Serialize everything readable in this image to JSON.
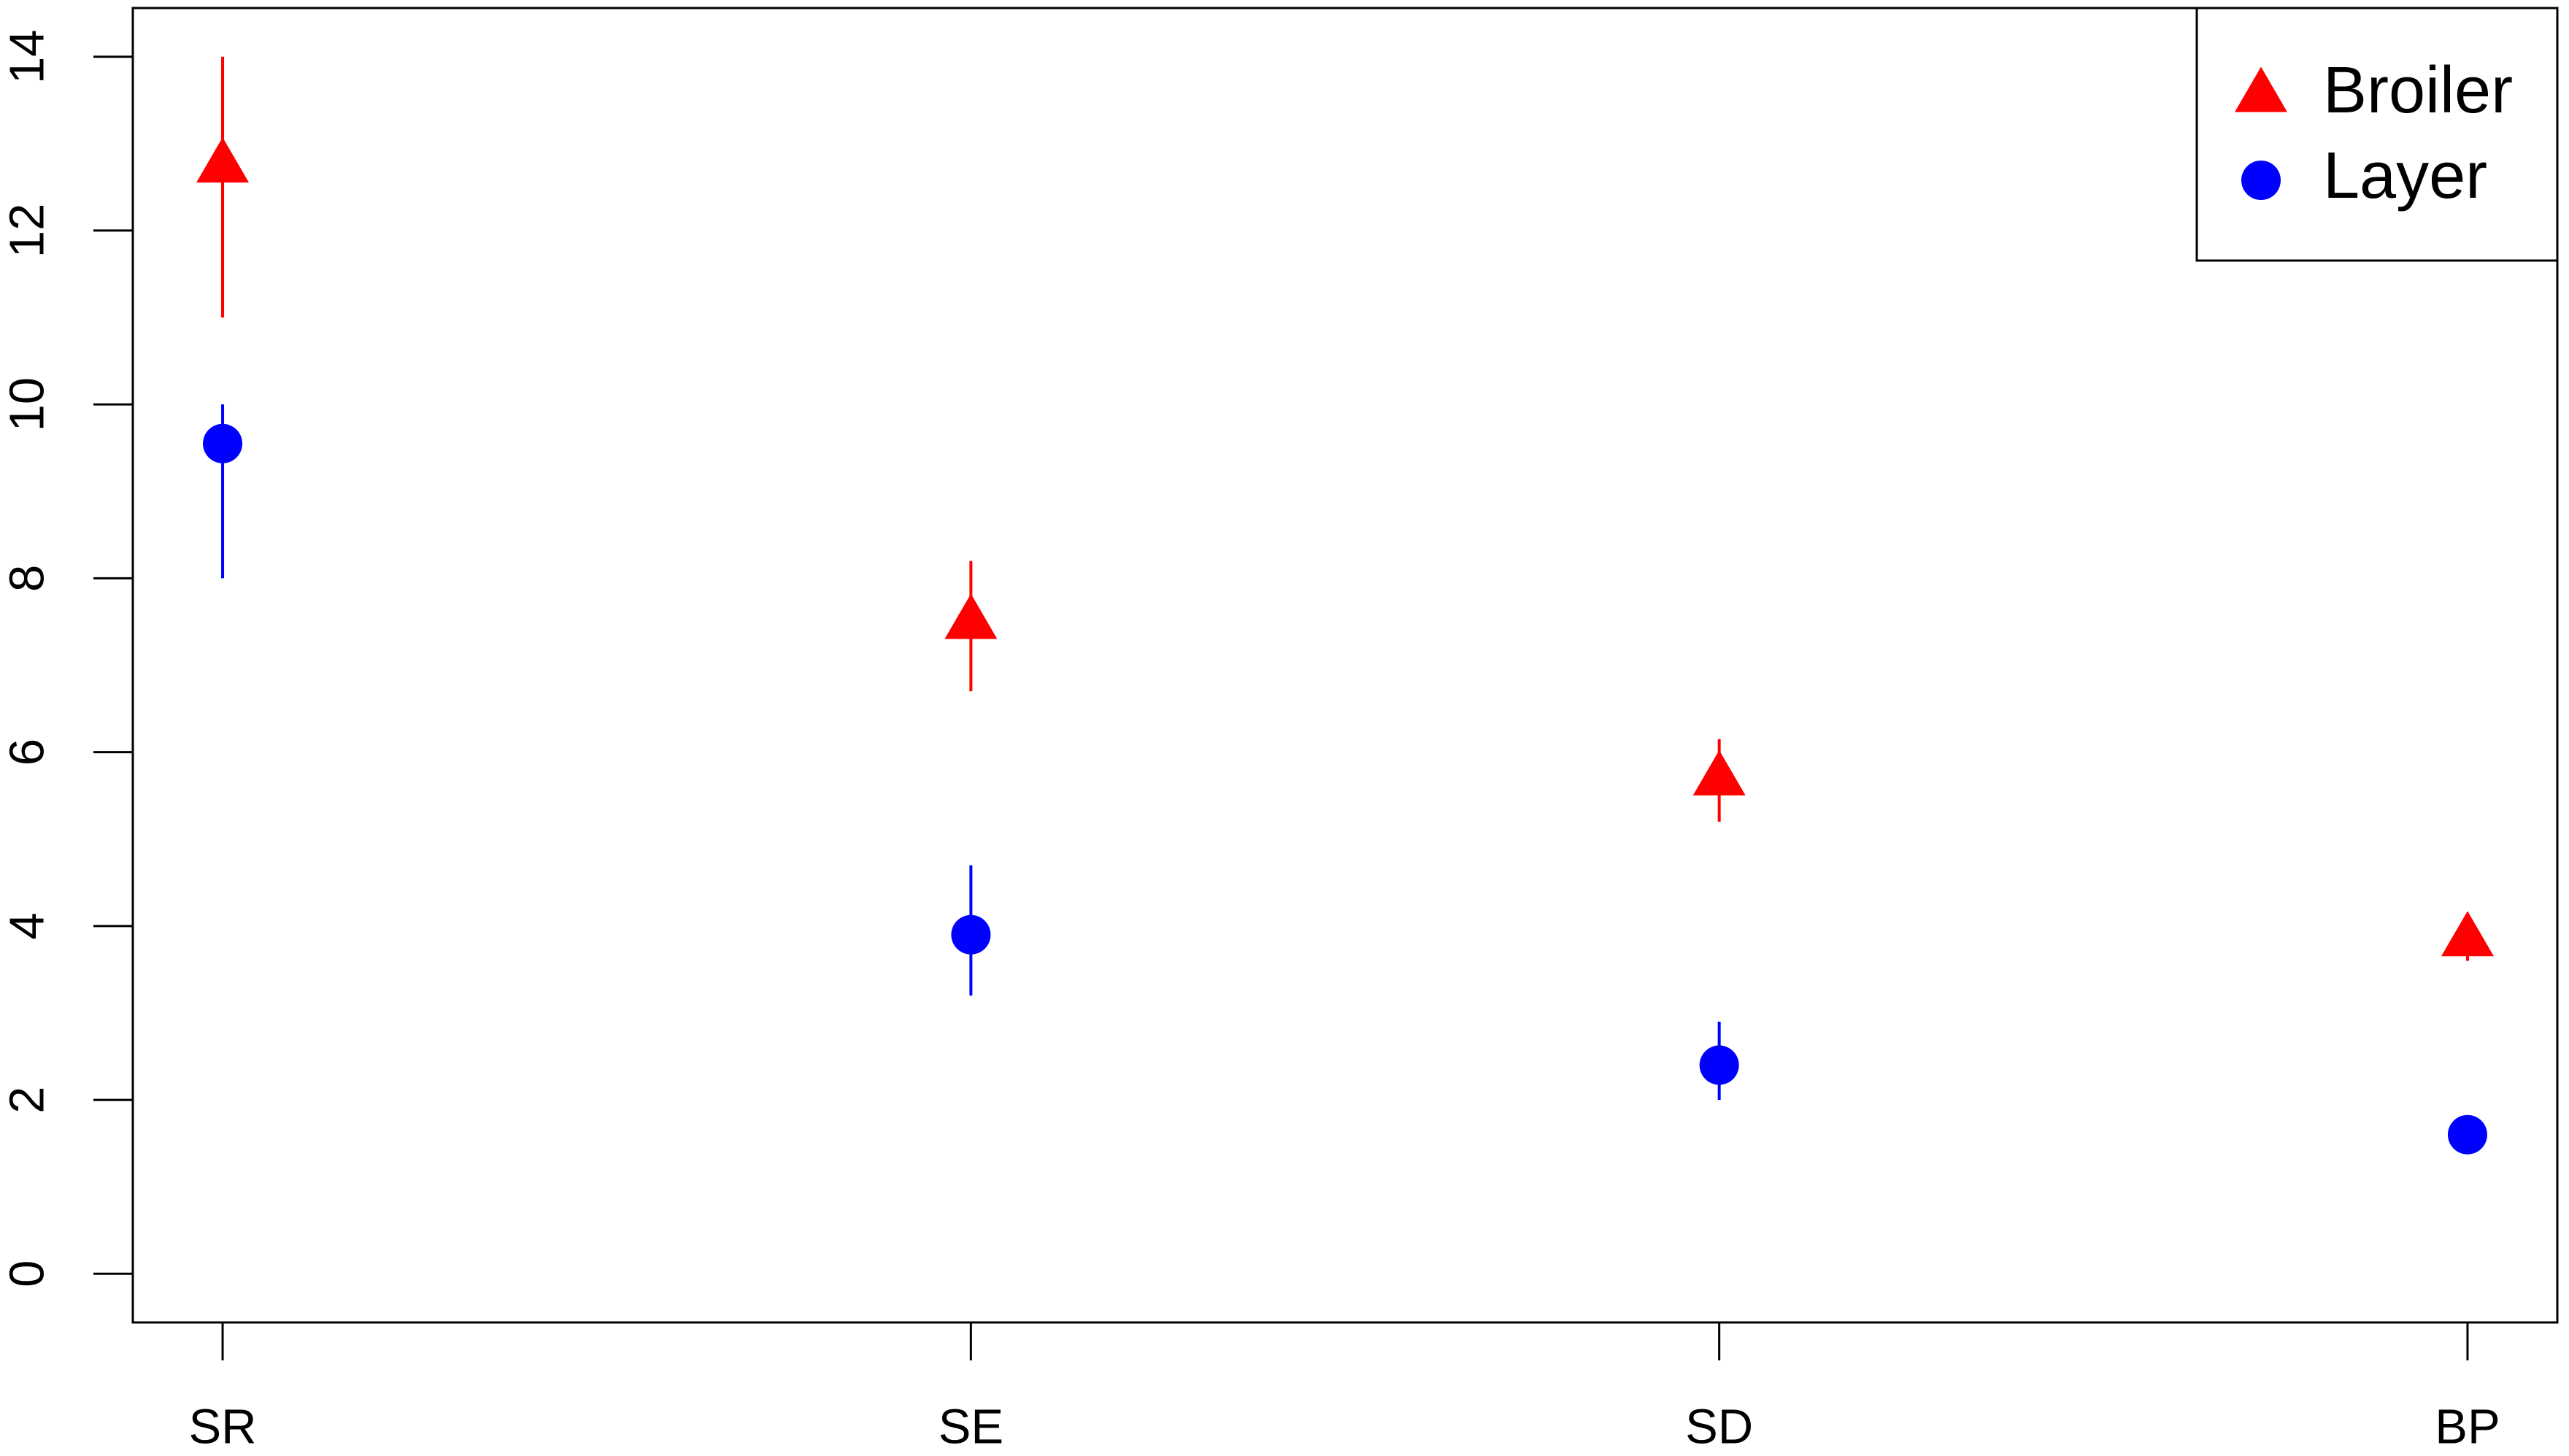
{
  "chart_data": {
    "type": "scatter",
    "categories": [
      "SR",
      "SE",
      "SD",
      "BP"
    ],
    "series": [
      {
        "name": "Broiler",
        "color": "#ff0000",
        "marker": "triangle",
        "values": [
          12.75,
          7.5,
          5.7,
          3.85
        ],
        "lower": [
          11.0,
          6.7,
          5.2,
          3.6
        ],
        "upper": [
          14.0,
          8.2,
          6.15,
          3.95
        ]
      },
      {
        "name": "Layer",
        "color": "#0000ff",
        "marker": "circle",
        "values": [
          9.55,
          3.9,
          2.4,
          1.6
        ],
        "lower": [
          8.0,
          3.2,
          2.0,
          null
        ],
        "upper": [
          10.0,
          4.7,
          2.9,
          null
        ]
      }
    ],
    "ylim": [
      -0.56,
      14.56
    ],
    "yticks": [
      0,
      2,
      4,
      6,
      8,
      10,
      12,
      14
    ],
    "legend": "top-right"
  }
}
